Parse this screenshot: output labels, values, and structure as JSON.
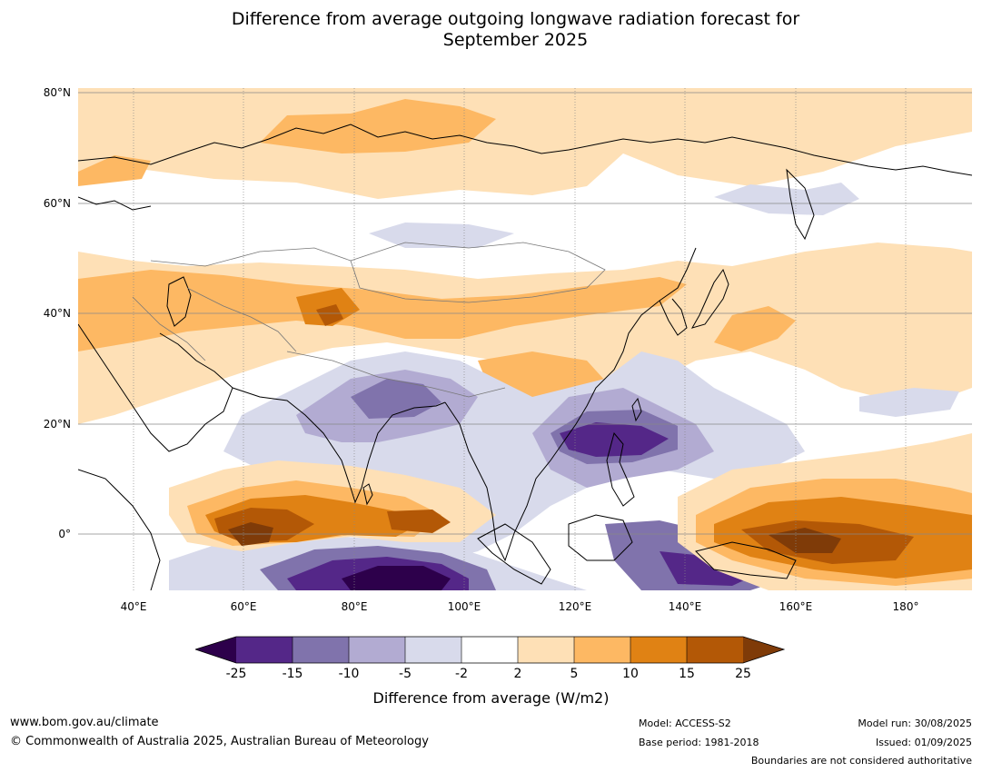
{
  "title_lines": [
    "Difference from average outgoing longwave radiation forecast for",
    "September 2025"
  ],
  "map": {
    "lat_labels": [
      "80°N",
      "60°N",
      "40°N",
      "20°N",
      "0°"
    ],
    "lon_labels": [
      "40°E",
      "60°E",
      "80°E",
      "100°E",
      "120°E",
      "140°E",
      "160°E",
      "180°"
    ],
    "lat_range": [
      -10,
      80
    ],
    "lon_range": [
      30,
      192
    ],
    "regions": {
      "north_eurasia": "positive anomaly",
      "equatorial_indian_ocean": "positive anomaly",
      "western_pacific": "positive anomaly",
      "maritime_continent": "negative anomaly",
      "eastern_indian_ocean": "negative anomaly"
    }
  },
  "colorbar": {
    "tick_labels": [
      "-25",
      "-15",
      "-10",
      "-5",
      "-2",
      "2",
      "5",
      "10",
      "15",
      "25"
    ],
    "colors": [
      "#2d004b",
      "#542788",
      "#8073ac",
      "#b2abd2",
      "#d8daeb",
      "#ffffff",
      "#fee0b6",
      "#fdb863",
      "#e08214",
      "#b35806",
      "#7f3b08"
    ],
    "label": "Difference from average (W/m2)"
  },
  "footer": {
    "url": "www.bom.gov.au/climate",
    "copyright": "© Commonwealth of Australia 2025, Australian Bureau of Meteorology",
    "model": "Model: ACCESS-S2",
    "base_period": "Base period: 1981-2018",
    "model_run": "Model run: 30/08/2025",
    "issued": "Issued: 01/09/2025",
    "disclaimer": "Boundaries are not considered authoritative"
  }
}
